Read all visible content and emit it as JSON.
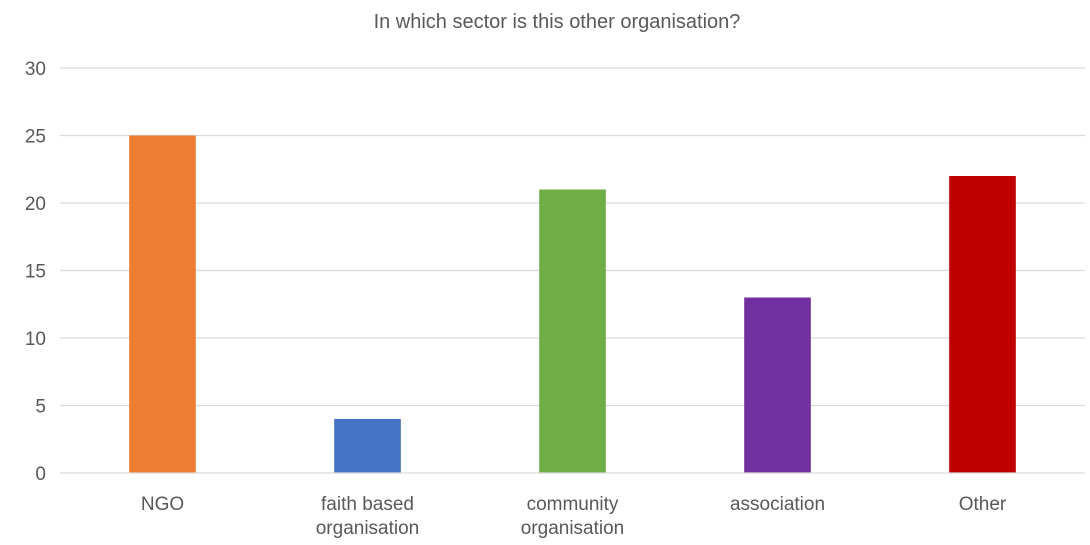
{
  "chart_data": {
    "type": "bar",
    "title": "In which sector is this other organisation?",
    "xlabel": "",
    "ylabel": "",
    "categories": [
      [
        "NGO"
      ],
      [
        "faith based",
        "organisation"
      ],
      [
        "community",
        "organisation"
      ],
      [
        "association"
      ],
      [
        "Other"
      ]
    ],
    "values": [
      25,
      4,
      21,
      13,
      22
    ],
    "colors": [
      "#ED7D31",
      "#4472C4",
      "#70AD47",
      "#7030A0",
      "#C00000"
    ],
    "yticks": [
      0,
      5,
      10,
      15,
      20,
      25,
      30
    ],
    "ylim": [
      0,
      30
    ],
    "grid": true,
    "legend": "none"
  }
}
